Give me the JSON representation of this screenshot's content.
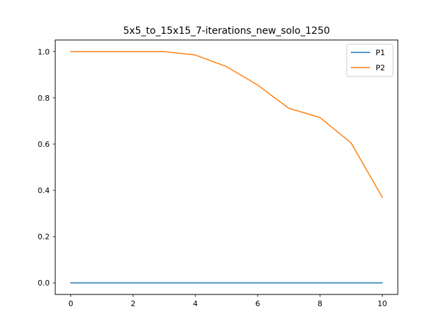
{
  "chart_data": {
    "type": "line",
    "title": "5x5_to_15x15_7-iterations_new_solo_1250",
    "xlabel": "",
    "ylabel": "",
    "xlim": [
      -0.5,
      10.5
    ],
    "ylim": [
      -0.05,
      1.05
    ],
    "xticks": [
      0,
      2,
      4,
      6,
      8,
      10
    ],
    "yticks": [
      0.0,
      0.2,
      0.4,
      0.6,
      0.8,
      1.0
    ],
    "xtick_labels": [
      "0",
      "2",
      "4",
      "6",
      "8",
      "10"
    ],
    "ytick_labels": [
      "0.0",
      "0.2",
      "0.4",
      "0.6",
      "0.8",
      "1.0"
    ],
    "grid": false,
    "legend_position": "top-right",
    "x": [
      0,
      1,
      2,
      3,
      4,
      5,
      6,
      7,
      8,
      9,
      10
    ],
    "series": [
      {
        "name": "P1",
        "color": "#1f77b4",
        "values": [
          0,
          0,
          0,
          0,
          0,
          0,
          0,
          0,
          0,
          0,
          0
        ]
      },
      {
        "name": "P2",
        "color": "#ff7f0e",
        "values": [
          1.0,
          1.0,
          1.0,
          1.0,
          0.985,
          0.935,
          0.855,
          0.755,
          0.715,
          0.605,
          0.37
        ]
      }
    ]
  }
}
